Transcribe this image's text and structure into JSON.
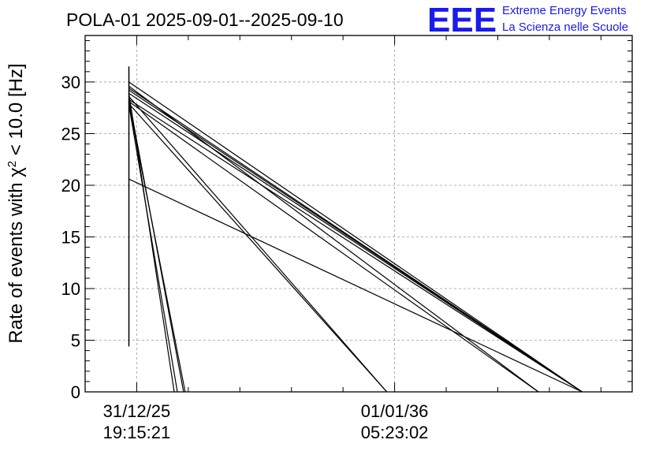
{
  "header": {
    "title": "POLA-01 2025-09-01--2025-09-10"
  },
  "logo": {
    "mark": "EEE",
    "line1": "Extreme Energy Events",
    "line2": "La Scienza nelle Scuole",
    "color": "#1a1aee"
  },
  "chart_data": {
    "type": "line",
    "title": "POLA-01 2025-09-01--2025-09-10",
    "ylabel": "Rate of events with χ",
    "ylabel_sup": "2",
    "ylabel_tail": " < 10.0 [Hz]",
    "ylim": [
      0,
      34.5
    ],
    "y_ticks": [
      0,
      5,
      10,
      15,
      20,
      25,
      30
    ],
    "y_tick_labels": [
      "0",
      "5",
      "10",
      "15",
      "20",
      "25",
      "30"
    ],
    "xlim": [
      -0.33,
      3.17
    ],
    "x_ticks": [
      {
        "pos": 0,
        "label_date": "31/12/25",
        "label_time": "19:15:21"
      },
      {
        "pos": 1.65,
        "label_date": "01/01/36",
        "label_time": "05:23:02"
      }
    ],
    "grid": true,
    "vertical_spike": {
      "x": -0.05,
      "y_min": 4.4,
      "y_max": 31.5
    },
    "segments": [
      {
        "x": [
          -0.05,
          2.85
        ],
        "y": [
          30.0,
          0
        ]
      },
      {
        "x": [
          -0.05,
          2.85
        ],
        "y": [
          29.4,
          0
        ]
      },
      {
        "x": [
          -0.05,
          2.85
        ],
        "y": [
          29.2,
          0
        ]
      },
      {
        "x": [
          -0.05,
          2.85
        ],
        "y": [
          28.9,
          0
        ]
      },
      {
        "x": [
          -0.05,
          2.85
        ],
        "y": [
          28.3,
          0
        ]
      },
      {
        "x": [
          -0.05,
          2.57
        ],
        "y": [
          29.6,
          0
        ]
      },
      {
        "x": [
          -0.05,
          2.57
        ],
        "y": [
          28.1,
          0
        ]
      },
      {
        "x": [
          -0.05,
          1.6
        ],
        "y": [
          28.6,
          0
        ]
      },
      {
        "x": [
          -0.05,
          1.6
        ],
        "y": [
          27.9,
          0
        ]
      },
      {
        "x": [
          -0.05,
          0.24
        ],
        "y": [
          28.9,
          0
        ]
      },
      {
        "x": [
          -0.05,
          0.26
        ],
        "y": [
          27.8,
          0
        ]
      },
      {
        "x": [
          -0.05,
          0.3
        ],
        "y": [
          28.4,
          0
        ]
      },
      {
        "x": [
          -0.05,
          0.31
        ],
        "y": [
          27.9,
          0
        ]
      },
      {
        "x": [
          -0.05,
          2.85
        ],
        "y": [
          20.6,
          0
        ]
      }
    ]
  }
}
